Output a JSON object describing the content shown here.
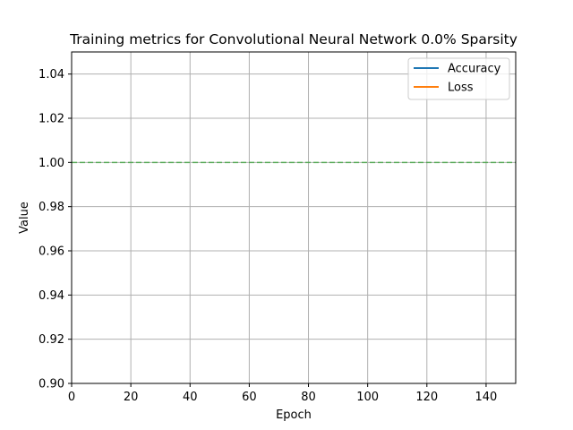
{
  "chart_data": {
    "type": "line",
    "title": "Training metrics for Convolutional Neural Network 0.0% Sparsity",
    "xlabel": "Epoch",
    "ylabel": "Value",
    "xlim": [
      0,
      150
    ],
    "ylim": [
      0.9,
      1.05
    ],
    "x_ticks": [
      0,
      20,
      40,
      60,
      80,
      100,
      120,
      140
    ],
    "x_tick_labels": [
      "0",
      "20",
      "40",
      "60",
      "80",
      "100",
      "120",
      "140"
    ],
    "y_ticks": [
      0.9,
      0.92,
      0.94,
      0.96,
      0.98,
      1.0,
      1.02,
      1.04
    ],
    "y_tick_labels": [
      "0.90",
      "0.92",
      "0.94",
      "0.96",
      "0.98",
      "1.00",
      "1.02",
      "1.04"
    ],
    "grid": true,
    "legend_position": "top-right",
    "series": [
      {
        "name": "Accuracy",
        "color": "#1f77b4",
        "style": "solid",
        "x": [],
        "values": []
      },
      {
        "name": "Loss",
        "color": "#ff7f0e",
        "style": "solid",
        "x": [],
        "values": []
      }
    ],
    "reference_lines": [
      {
        "orientation": "horizontal",
        "y": 1.0,
        "color": "#2ca02c",
        "style": "dashed"
      }
    ]
  }
}
